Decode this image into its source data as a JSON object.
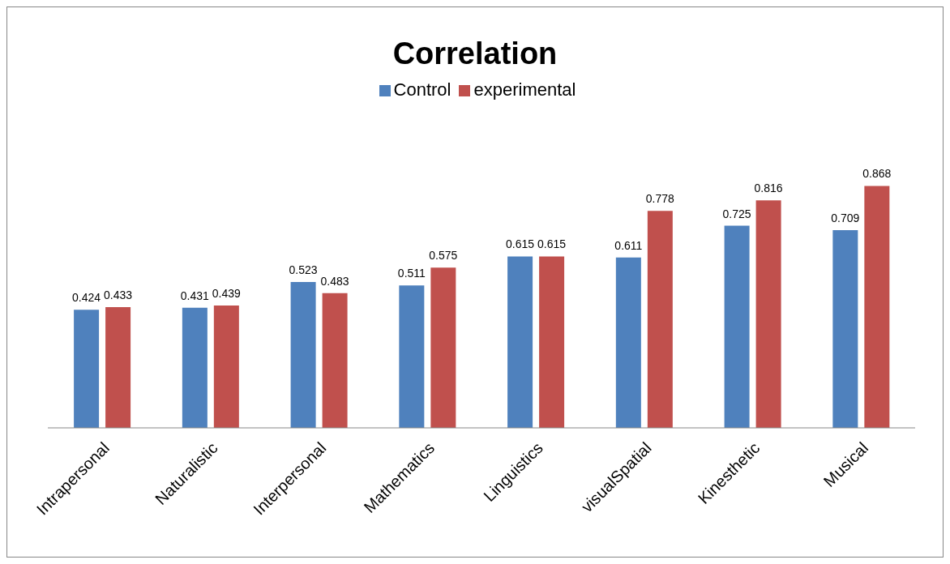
{
  "chart_data": {
    "type": "bar",
    "title": "Correlation",
    "categories": [
      "Intrapersonal",
      "Naturalistic",
      "Interpersonal",
      "Mathematics",
      "Linguistics",
      "visualSpatial",
      "Kinesthetic",
      "Musical"
    ],
    "series": [
      {
        "name": "Control",
        "color": "#4f81bd",
        "values": [
          0.424,
          0.431,
          0.523,
          0.511,
          0.615,
          0.611,
          0.725,
          0.709
        ]
      },
      {
        "name": "experimental",
        "color": "#c0504d",
        "values": [
          0.433,
          0.439,
          0.483,
          0.575,
          0.615,
          0.778,
          0.816,
          0.868
        ]
      }
    ],
    "data_labels": true,
    "legend": "top"
  }
}
